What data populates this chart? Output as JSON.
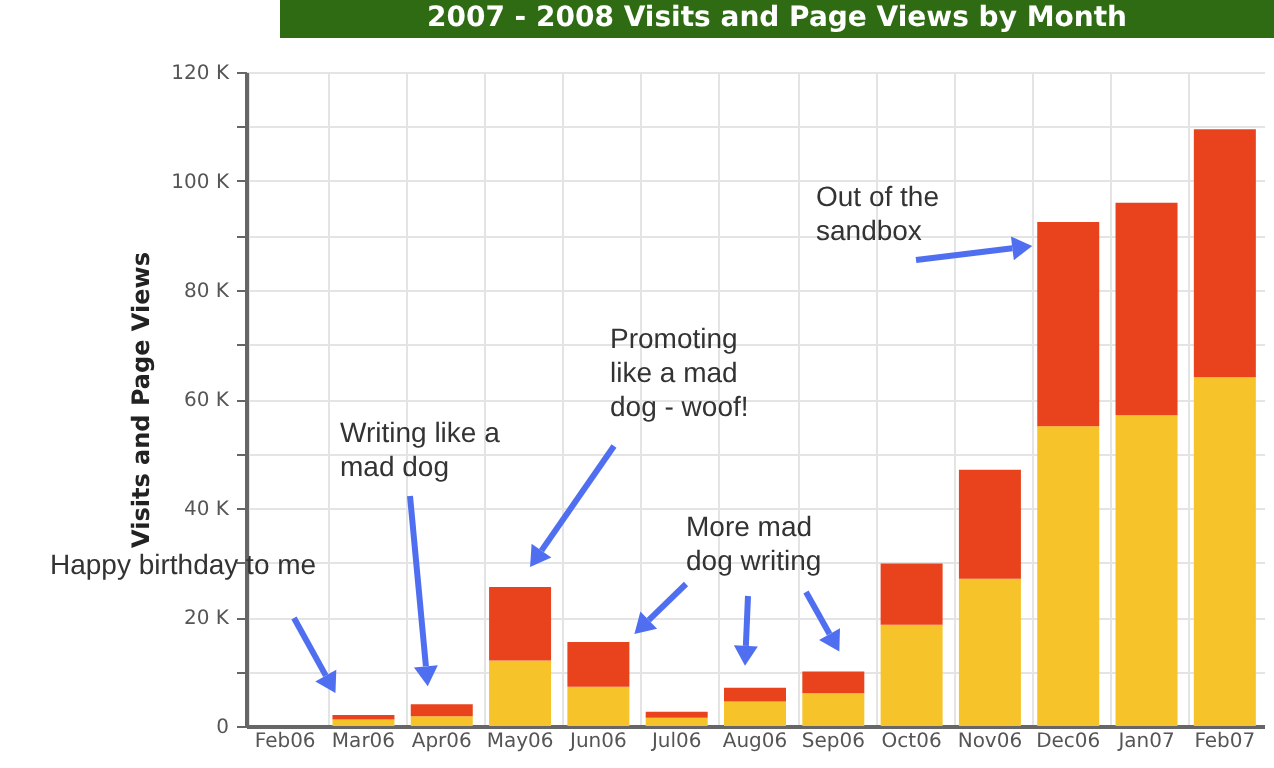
{
  "chart_data": {
    "type": "bar",
    "title": "2007 - 2008 Visits and Page Views by Month",
    "ylabel": "Visits and Page Views",
    "categories": [
      "Feb06",
      "Mar06",
      "Apr06",
      "May06",
      "Jun06",
      "Jul06",
      "Aug06",
      "Sep06",
      "Oct06",
      "Nov06",
      "Dec06",
      "Jan07",
      "Feb07"
    ],
    "series": [
      {
        "color": "#f6c42a",
        "values": [
          0,
          1.2,
          1.8,
          12,
          7.2,
          1.5,
          4.5,
          6,
          18.6,
          27,
          55,
          57,
          64
        ]
      },
      {
        "color": "#e9431d",
        "values": [
          0,
          0.8,
          2.2,
          13.5,
          8.2,
          1.1,
          2.5,
          4,
          11.2,
          20,
          37.5,
          39,
          45.5
        ]
      }
    ],
    "stacked": true,
    "ylim": [
      0,
      120
    ],
    "yticks": [
      0,
      {
        "value": 10,
        "label": null
      },
      {
        "value": 20,
        "label": "20 K"
      },
      {
        "value": 30,
        "label": null
      },
      {
        "value": 40,
        "label": "40 K"
      },
      {
        "value": 50,
        "label": null
      },
      {
        "value": 60,
        "label": "60 K"
      },
      {
        "value": 70,
        "label": null
      },
      {
        "value": 80,
        "label": "80 K"
      },
      {
        "value": 90,
        "label": null
      },
      {
        "value": 100,
        "label": "100 K"
      },
      {
        "value": 110,
        "label": null
      },
      {
        "value": 120,
        "label": "120 K"
      }
    ],
    "grid": true,
    "annotations": [
      "Happy birthday to me",
      "Writing like a mad dog",
      "Promoting like a mad dog - woof!",
      "More mad dog writing",
      "Out of the sandbox"
    ]
  }
}
